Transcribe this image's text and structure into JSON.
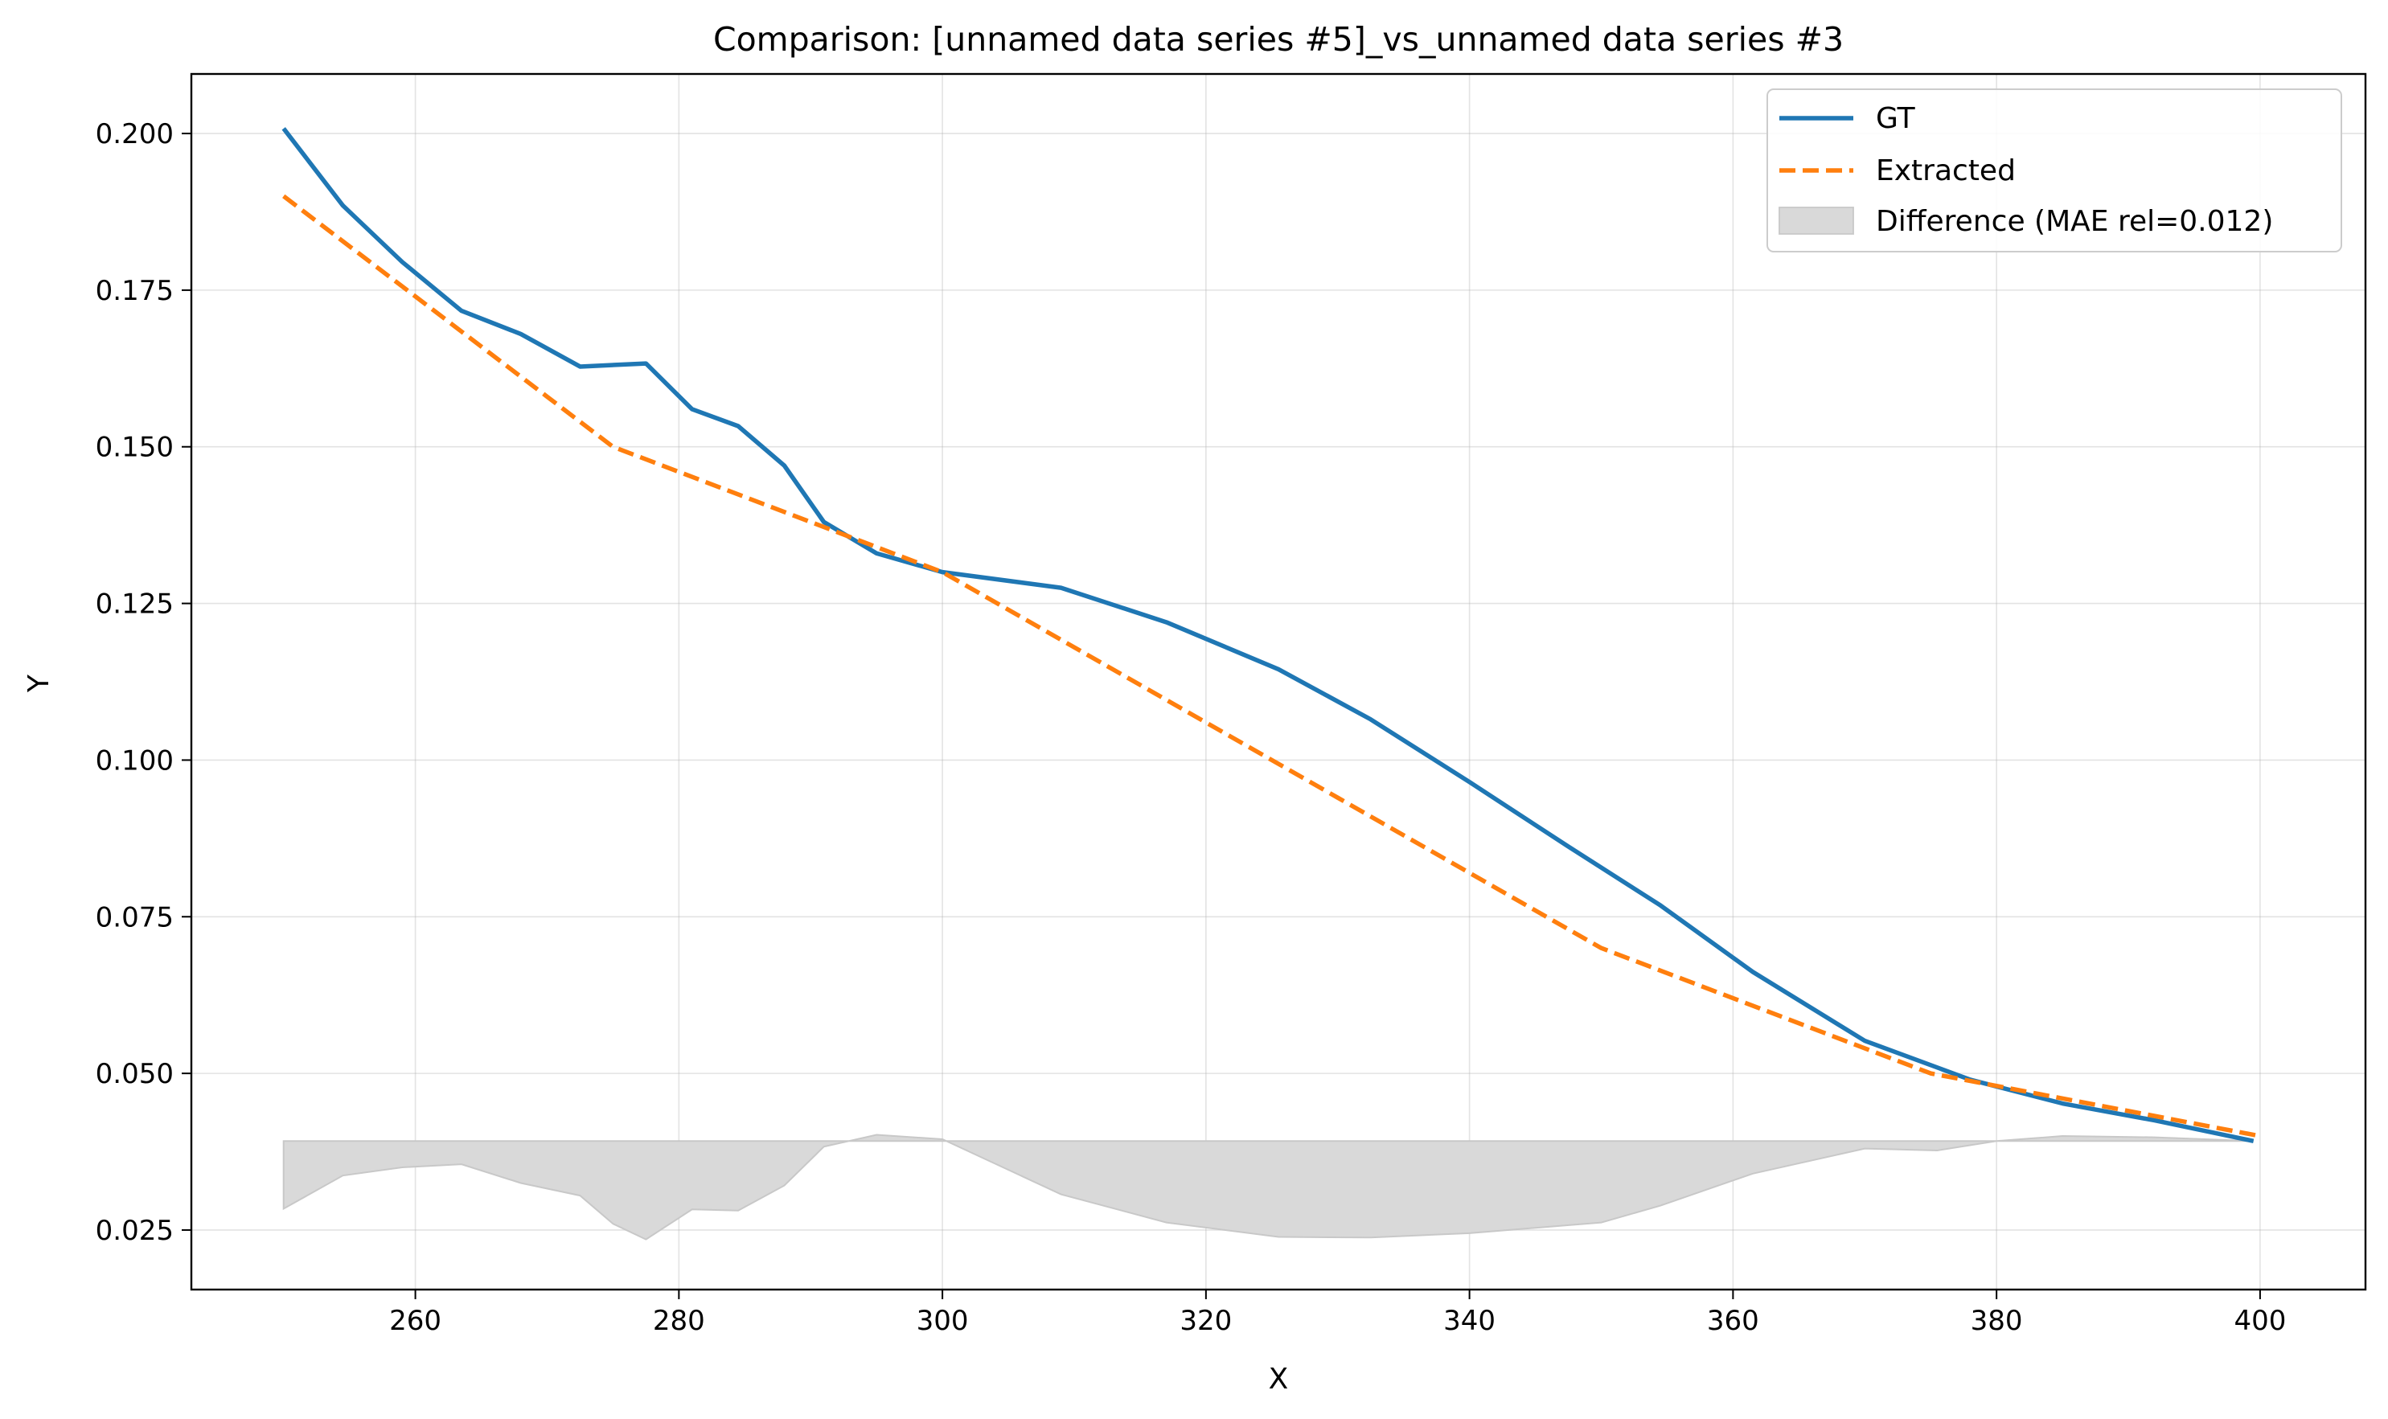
{
  "chart_data": {
    "type": "line",
    "title": "Comparison: [unnamed data series #5]_vs_unnamed data series #3",
    "xlabel": "X",
    "ylabel": "Y",
    "xlim": [
      243,
      408
    ],
    "ylim": [
      0.0155,
      0.2095
    ],
    "xticks": [
      260,
      280,
      300,
      320,
      340,
      360,
      380,
      400
    ],
    "yticks": [
      0.025,
      0.05,
      0.075,
      0.1,
      0.125,
      0.15,
      0.175,
      0.2
    ],
    "xtick_labels": [
      "260",
      "280",
      "300",
      "320",
      "340",
      "360",
      "380",
      "400"
    ],
    "ytick_labels": [
      "0.025",
      "0.050",
      "0.075",
      "0.100",
      "0.125",
      "0.150",
      "0.175",
      "0.200"
    ],
    "grid": true,
    "legend_position": "top-right",
    "series": [
      {
        "name": "GT",
        "style": "solid",
        "color": "#1f77b4",
        "x": [
          250,
          254.5,
          259,
          263.5,
          268,
          272.5,
          277.5,
          281,
          284.5,
          288,
          291,
          295,
          300,
          309,
          317,
          325.5,
          332.5,
          340,
          347.5,
          354.5,
          361.5,
          370,
          378,
          385,
          392,
          399.5
        ],
        "y": [
          0.2008,
          0.1885,
          0.1795,
          0.1717,
          0.168,
          0.1628,
          0.1633,
          0.156,
          0.1533,
          0.147,
          0.138,
          0.133,
          0.13,
          0.1275,
          0.122,
          0.1145,
          0.1065,
          0.0965,
          0.0862,
          0.0768,
          0.0662,
          0.0552,
          0.049,
          0.0452,
          0.0425,
          0.0392
        ]
      },
      {
        "name": "Extracted",
        "style": "dashed",
        "color": "#ff7f0e",
        "x": [
          250,
          260,
          270,
          275,
          280,
          290,
          300,
          310,
          320,
          330,
          340,
          350,
          360,
          370,
          375,
          380,
          390,
          400
        ],
        "y": [
          0.19,
          0.174,
          0.158,
          0.15,
          0.146,
          0.138,
          0.13,
          0.118,
          0.106,
          0.094,
          0.082,
          0.07,
          0.062,
          0.054,
          0.05,
          0.048,
          0.044,
          0.04
        ]
      }
    ],
    "difference": {
      "name": "Difference (MAE rel=0.012)",
      "color": "#d9d9d9",
      "edge_color": "#c8c8c8",
      "baseline": 0.0392,
      "x": [
        250,
        254.5,
        259,
        263.5,
        268,
        272.5,
        275,
        277.5,
        281,
        284.5,
        288,
        291,
        295,
        300,
        309,
        317,
        325.5,
        332.5,
        340,
        350,
        354.5,
        361.5,
        370,
        375.5,
        380,
        385,
        392,
        399.5
      ],
      "y": [
        0.0284,
        0.0337,
        0.035,
        0.0355,
        0.0325,
        0.0305,
        0.026,
        0.0235,
        0.0283,
        0.0281,
        0.0321,
        0.0383,
        0.0402,
        0.0395,
        0.0307,
        0.0262,
        0.0239,
        0.0238,
        0.0245,
        0.0262,
        0.0289,
        0.034,
        0.038,
        0.0377,
        0.0392,
        0.04,
        0.0398,
        0.0392
      ]
    }
  }
}
